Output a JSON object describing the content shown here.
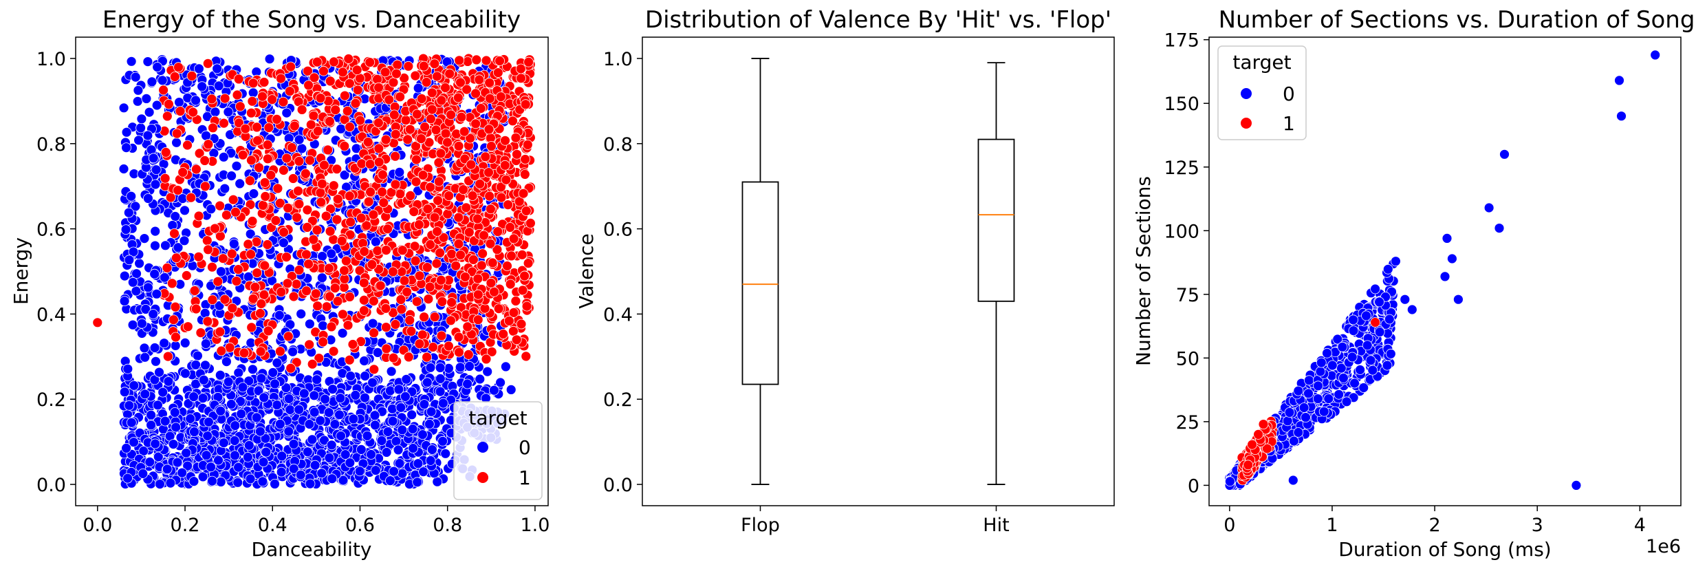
{
  "chart_data": [
    {
      "type": "scatter",
      "title": "Energy of the Song vs. Danceability",
      "xlabel": "Danceability",
      "ylabel": "Energy",
      "xlim": [
        -0.05,
        1.03
      ],
      "ylim": [
        -0.05,
        1.05
      ],
      "xticks": [
        0.0,
        0.2,
        0.4,
        0.6,
        0.8,
        1.0
      ],
      "xtick_labels": [
        "0.0",
        "0.2",
        "0.4",
        "0.6",
        "0.8",
        "1.0"
      ],
      "yticks": [
        0.0,
        0.2,
        0.4,
        0.6,
        0.8,
        1.0
      ],
      "ytick_labels": [
        "0.0",
        "0.2",
        "0.4",
        "0.6",
        "0.8",
        "1.0"
      ],
      "legend": {
        "title": "target",
        "placement": "lower-right",
        "entries": [
          {
            "label": "0",
            "color": "#0000ff"
          },
          {
            "label": "1",
            "color": "#ff0000"
          }
        ]
      },
      "series": [
        {
          "name": "0",
          "color": "#0000ff",
          "description_x_range": [
            0.06,
            0.95
          ],
          "y_range": [
            0.0,
            1.0
          ]
        },
        {
          "name": "1",
          "color": "#ff0000",
          "x_range": [
            0.15,
            0.99
          ],
          "y_range": [
            0.25,
            1.0
          ]
        }
      ],
      "outliers": [
        {
          "x": 0.0,
          "y": 0.38,
          "series": "1"
        }
      ]
    },
    {
      "type": "box",
      "title": "Distribution of Valence By 'Hit' vs. 'Flop'",
      "xlabel": "",
      "ylabel": "Valence",
      "ylim": [
        -0.05,
        1.05
      ],
      "yticks": [
        0.0,
        0.2,
        0.4,
        0.6,
        0.8,
        1.0
      ],
      "ytick_labels": [
        "0.0",
        "0.2",
        "0.4",
        "0.6",
        "0.8",
        "1.0"
      ],
      "categories": [
        "Flop",
        "Hit"
      ],
      "boxes": [
        {
          "label": "Flop",
          "min": 0.0,
          "q1": 0.235,
          "median": 0.47,
          "q3": 0.71,
          "max": 1.0
        },
        {
          "label": "Hit",
          "min": 0.0,
          "q1": 0.43,
          "median": 0.633,
          "q3": 0.81,
          "max": 0.99
        }
      ],
      "median_color": "#ff7f0e"
    },
    {
      "type": "scatter",
      "title": "Number of Sections vs. Duration of Song",
      "xlabel": "Duration of Song (ms)",
      "ylabel": "Number of Sections",
      "x_scale_label": "1e6",
      "xlim": [
        -0.2,
        4.4
      ],
      "ylim": [
        -8,
        176
      ],
      "xticks": [
        0,
        1,
        2,
        3,
        4
      ],
      "xtick_labels": [
        "0",
        "1",
        "2",
        "3",
        "4"
      ],
      "yticks": [
        0,
        25,
        50,
        75,
        100,
        125,
        150,
        175
      ],
      "ytick_labels": [
        "0",
        "25",
        "50",
        "75",
        "100",
        "125",
        "150",
        "175"
      ],
      "legend": {
        "title": "target",
        "placement": "upper-left",
        "entries": [
          {
            "label": "0",
            "color": "#0000ff"
          },
          {
            "label": "1",
            "color": "#ff0000"
          }
        ]
      },
      "series": [
        {
          "name": "0",
          "color": "#0000ff",
          "points": [
            [
              4.15,
              169
            ],
            [
              3.8,
              159
            ],
            [
              3.82,
              145
            ],
            [
              2.68,
              130
            ],
            [
              2.53,
              109
            ],
            [
              2.63,
              101
            ],
            [
              2.12,
              97
            ],
            [
              2.17,
              89
            ],
            [
              2.1,
              82
            ],
            [
              2.23,
              73
            ],
            [
              3.38,
              0
            ],
            [
              1.62,
              88
            ],
            [
              1.78,
              69
            ],
            [
              1.71,
              73
            ],
            [
              1.58,
              76
            ],
            [
              1.52,
              74
            ],
            [
              1.46,
              72
            ],
            [
              0.62,
              2
            ]
          ]
        },
        {
          "name": "1",
          "color": "#ff0000",
          "points": [
            [
              0.25,
              14
            ],
            [
              0.2,
              10
            ],
            [
              0.3,
              18
            ],
            [
              0.35,
              22
            ],
            [
              0.28,
              20
            ],
            [
              0.22,
              16
            ],
            [
              0.18,
              8
            ],
            [
              0.33,
              24
            ],
            [
              1.42,
              64
            ]
          ]
        }
      ]
    }
  ]
}
